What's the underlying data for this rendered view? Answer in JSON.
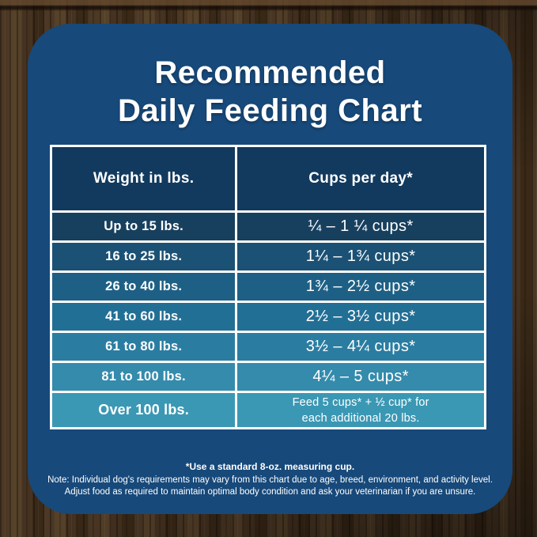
{
  "title": {
    "line1": "Recommended",
    "line2": "Daily Feeding Chart"
  },
  "colors": {
    "card_bg": "#17497A",
    "header_bg": "#123A5E",
    "table_border": "#FFFFFF",
    "text": "#FFFFFF"
  },
  "table": {
    "headers": {
      "weight": "Weight in lbs.",
      "cups": "Cups per day*"
    },
    "rows": [
      {
        "weight": "Up to 15 lbs.",
        "cups": "¼ – 1 ¼ cups*",
        "bg": "#17405F"
      },
      {
        "weight": "16 to 25 lbs.",
        "cups": "1¼ – 1¾ cups*",
        "bg": "#1B5174"
      },
      {
        "weight": "26 to 40 lbs.",
        "cups": "1¾ – 2½ cups*",
        "bg": "#1E6085"
      },
      {
        "weight": "41 to 60 lbs.",
        "cups": "2½ – 3½ cups*",
        "bg": "#226F95"
      },
      {
        "weight": "61 to 80 lbs.",
        "cups": "3½ – 4¼ cups*",
        "bg": "#2A7DA1"
      },
      {
        "weight": "81 to 100 lbs.",
        "cups": "4¼ – 5 cups*",
        "bg": "#348BAC"
      },
      {
        "weight": "Over 100 lbs.",
        "cups_line1": "Feed 5 cups* + ½ cup* for",
        "cups_line2": "each additional 20 lbs.",
        "bg": "#3A98B4"
      }
    ]
  },
  "footnotes": {
    "cup_note": "*Use a standard 8-oz. measuring cup.",
    "note_line1": "Note: Individual dog's requirements may vary from this chart due to age, breed, environment, and activity level.",
    "note_line2": "Adjust food as required to maintain optimal body condition and ask your veterinarian if you are unsure."
  },
  "chart_data": {
    "type": "table",
    "title": "Recommended Daily Feeding Chart",
    "columns": [
      "Weight in lbs.",
      "Cups per day*"
    ],
    "rows": [
      [
        "Up to 15 lbs.",
        "¼ – 1 ¼ cups*"
      ],
      [
        "16 to 25 lbs.",
        "1¼ – 1¾ cups*"
      ],
      [
        "26 to 40 lbs.",
        "1¾ – 2½ cups*"
      ],
      [
        "41 to 60 lbs.",
        "2½ – 3½ cups*"
      ],
      [
        "61 to 80 lbs.",
        "3½ – 4¼ cups*"
      ],
      [
        "81 to 100 lbs.",
        "4¼ – 5 cups*"
      ],
      [
        "Over 100 lbs.",
        "Feed 5 cups* + ½ cup* for each additional 20 lbs."
      ]
    ],
    "footnotes": [
      "*Use a standard 8-oz. measuring cup.",
      "Note: Individual dog's requirements may vary from this chart due to age, breed, environment, and activity level.",
      "Adjust food as required to maintain optimal body condition and ask your veterinarian if you are unsure."
    ]
  }
}
